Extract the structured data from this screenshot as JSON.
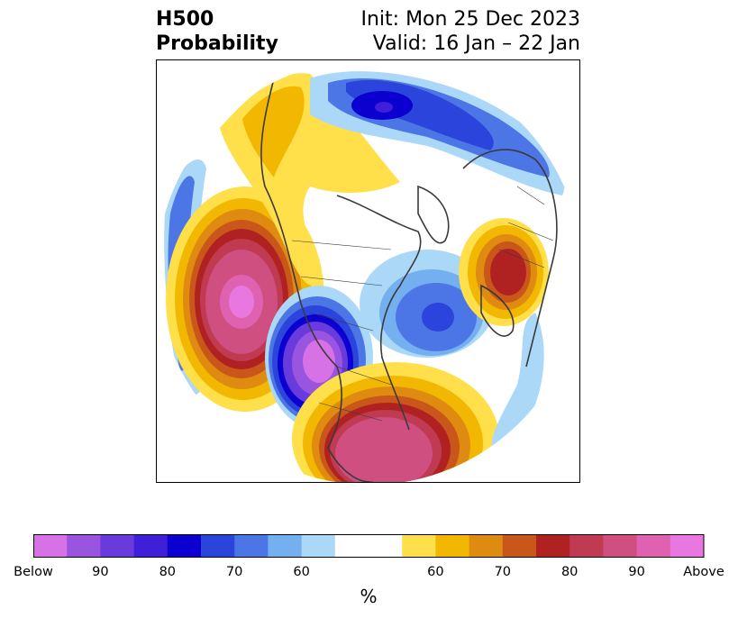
{
  "title": {
    "left_line1": "H500",
    "left_line2": "Probability",
    "right_line1": "Init: Mon 25 Dec 2023",
    "right_line2": "Valid: 16 Jan – 22 Jan"
  },
  "colorbar": {
    "label": "%",
    "ticks": [
      "Below",
      "90",
      "80",
      "70",
      "60",
      "60",
      "70",
      "80",
      "90",
      "Above"
    ],
    "colors": [
      "#d771e6",
      "#9a55e0",
      "#6a3bdc",
      "#3f1fd8",
      "#0b00d0",
      "#2a44dc",
      "#4c75e6",
      "#74aff0",
      "#acd8f8",
      "#ffffff",
      "#ffffff",
      "#ffdf4a",
      "#f2b700",
      "#df8a10",
      "#c9571a",
      "#b02222",
      "#c03a52",
      "#cf4f80",
      "#de62b0",
      "#e878e0"
    ]
  },
  "map": {
    "projection": "north-polar-stereographic",
    "regions": "North America, Pacific, Arctic, Eurasia",
    "colors": {
      "below_60": "#acd8f8",
      "below_70": "#4c75e6",
      "below_80": "#0b00d0",
      "below_90": "#6a3bdc",
      "below_max": "#d771e6",
      "above_60": "#ffdf4a",
      "above_70": "#df8a10",
      "above_80": "#b02222",
      "above_90": "#cf4f80",
      "above_max": "#e878e0",
      "coast": "#3a3a3a"
    }
  }
}
